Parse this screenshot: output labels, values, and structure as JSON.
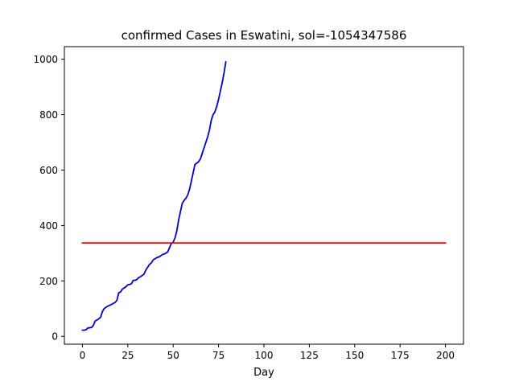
{
  "chart_data": {
    "type": "line",
    "title": "confirmed Cases in Eswatini, sol=-1054347586",
    "xlabel": "Day",
    "ylabel": "",
    "xlim": [
      -9.95,
      209.95
    ],
    "ylim": [
      -28.35,
      1045.35
    ],
    "xticks": [
      0,
      25,
      50,
      75,
      100,
      125,
      150,
      175,
      200
    ],
    "yticks": [
      0,
      200,
      400,
      600,
      800,
      1000
    ],
    "grid": false,
    "legend": "none",
    "series": [
      {
        "color": "#0000cd",
        "x": [
          0,
          1,
          2,
          3,
          4,
          5,
          6,
          7,
          8,
          9,
          10,
          11,
          12,
          13,
          14,
          15,
          16,
          17,
          18,
          19,
          20,
          21,
          22,
          23,
          24,
          25,
          26,
          27,
          28,
          29,
          30,
          31,
          32,
          33,
          34,
          35,
          36,
          37,
          38,
          39,
          40,
          41,
          42,
          43,
          44,
          45,
          46,
          47,
          48,
          49,
          50,
          51,
          52,
          53,
          54,
          55,
          56,
          57,
          58,
          59,
          60,
          61,
          62,
          63,
          64,
          65,
          66,
          67,
          68,
          69,
          70,
          71,
          72,
          73,
          74,
          75,
          76,
          77,
          78,
          79
        ],
        "y": [
          22,
          22,
          24,
          30,
          31,
          32,
          39,
          55,
          59,
          63,
          69,
          89,
          100,
          105,
          109,
          112,
          115,
          119,
          122,
          130,
          157,
          160,
          170,
          175,
          179,
          186,
          187,
          190,
          202,
          202,
          205,
          212,
          215,
          220,
          225,
          240,
          250,
          260,
          265,
          276,
          280,
          284,
          286,
          290,
          295,
          297,
          300,
          305,
          320,
          335,
          340,
          355,
          380,
          420,
          450,
          480,
          490,
          498,
          510,
          530,
          560,
          590,
          620,
          625,
          630,
          640,
          660,
          680,
          700,
          720,
          745,
          780,
          800,
          810,
          830,
          855,
          885,
          915,
          950,
          990
        ]
      },
      {
        "color": "#ff0000",
        "x": [
          0,
          200
        ],
        "y": [
          337,
          337
        ]
      }
    ]
  }
}
